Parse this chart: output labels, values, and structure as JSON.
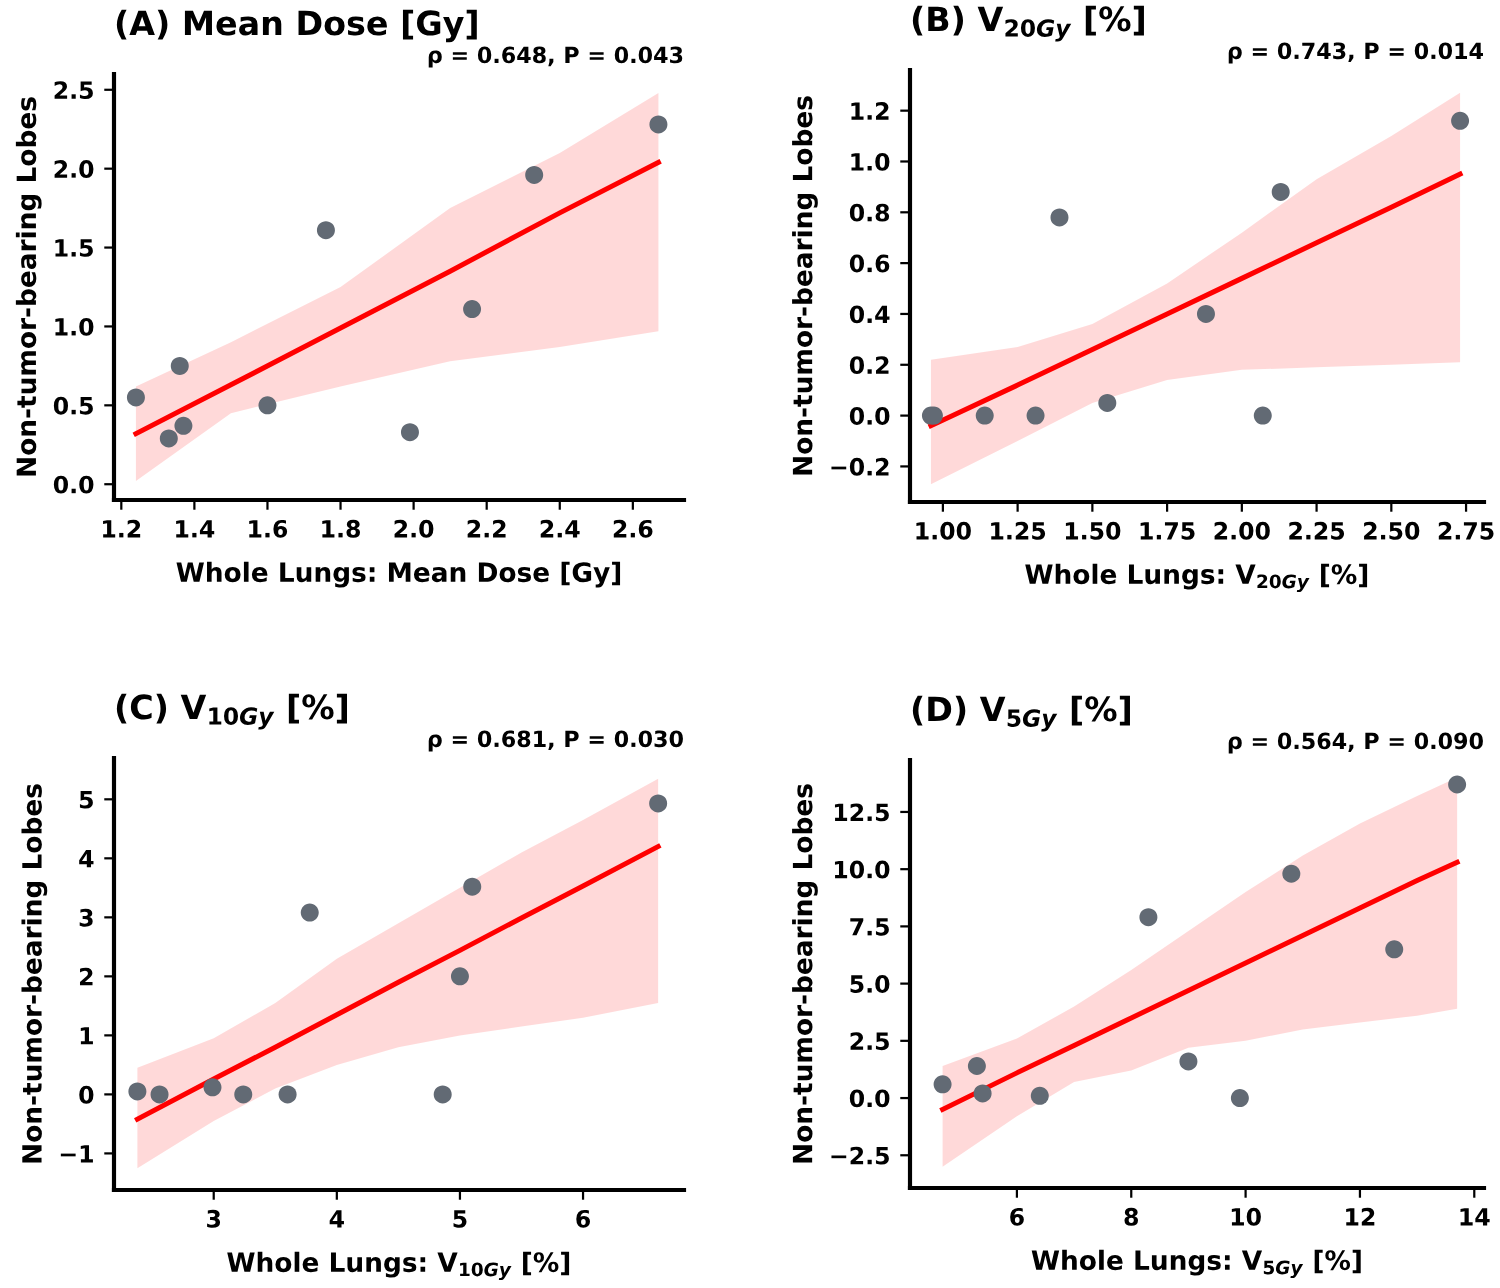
{
  "chart_data": [
    {
      "type": "scatter",
      "title": "(A) Mean Dose [Gy]",
      "xlabel": "Whole Lungs: Mean Dose [Gy]",
      "ylabel": "Non-tumor-bearing Lobes",
      "annotations": [
        "ρ = 0.648, P = 0.043"
      ],
      "xlim": [
        1.18,
        2.74
      ],
      "ylim": [
        -0.1,
        2.6
      ],
      "xticks": [
        1.2,
        1.4,
        1.6,
        1.8,
        {
          "value": 2,
          "label": "2.0"
        },
        2.2,
        2.4,
        2.6
      ],
      "yticks": [
        {
          "value": 0,
          "label": "0.0"
        },
        0.5,
        {
          "value": 1,
          "label": "1.0"
        },
        1.5,
        {
          "value": 2,
          "label": "2.0"
        },
        2.5
      ],
      "grid": false,
      "legend": false,
      "series": [
        {
          "marker": "circle",
          "color": "#626a74",
          "x": [
            1.24,
            1.33,
            1.36,
            1.37,
            1.6,
            1.76,
            1.99,
            2.16,
            2.33,
            2.67
          ],
          "values": [
            0.55,
            0.29,
            0.75,
            0.37,
            0.5,
            1.61,
            0.33,
            1.11,
            1.96,
            2.28
          ]
        },
        {
          "type": "line",
          "color": "#ff0000",
          "x": [
            1.24,
            1.5,
            1.8,
            2.1,
            2.4,
            2.67
          ],
          "values": [
            0.32,
            0.63,
            0.99,
            1.35,
            1.72,
            2.04
          ],
          "lower": [
            0.02,
            0.45,
            0.62,
            0.78,
            0.87,
            0.97
          ],
          "upper": [
            0.62,
            0.9,
            1.25,
            1.75,
            2.1,
            2.48
          ]
        }
      ]
    },
    {
      "type": "scatter",
      "title": "(B) V$_{20Gy}$ [%]",
      "xlabel": "Whole Lungs: V$_{20Gy}$ [%]",
      "ylabel": "Non-tumor-bearing Lobes",
      "annotations": [
        "ρ = 0.743, P = 0.014"
      ],
      "xlim": [
        0.89,
        2.81
      ],
      "ylim": [
        -0.34,
        1.36
      ],
      "xticks": [
        {
          "value": 1.0,
          "label": "1.00"
        },
        1.25,
        {
          "value": 1.5,
          "label": "1.50"
        },
        1.75,
        {
          "value": 2.0,
          "label": "2.00"
        },
        2.25,
        {
          "value": 2.5,
          "label": "2.50"
        },
        2.75
      ],
      "yticks": [
        {
          "value": -0.2,
          "label": "−0.2"
        },
        {
          "value": 0,
          "label": "0.0"
        },
        0.2,
        0.4,
        0.6,
        0.8,
        {
          "value": 1,
          "label": "1.0"
        },
        1.2
      ],
      "grid": false,
      "legend": false,
      "series": [
        {
          "marker": "circle",
          "color": "#626a74",
          "x": [
            0.96,
            0.97,
            1.14,
            1.31,
            1.39,
            1.55,
            1.88,
            2.07,
            2.13,
            2.73
          ],
          "values": [
            0.0,
            0.0,
            0.0,
            0.0,
            0.78,
            0.05,
            0.4,
            0.0,
            0.88,
            1.16
          ]
        },
        {
          "type": "line",
          "color": "#ff0000",
          "x": [
            0.96,
            1.25,
            1.5,
            1.75,
            2.0,
            2.25,
            2.5,
            2.73
          ],
          "values": [
            -0.04,
            0.12,
            0.26,
            0.4,
            0.54,
            0.68,
            0.82,
            0.95
          ],
          "lower": [
            -0.27,
            -0.1,
            0.05,
            0.14,
            0.18,
            0.19,
            0.2,
            0.21
          ],
          "upper": [
            0.22,
            0.27,
            0.36,
            0.52,
            0.72,
            0.93,
            1.1,
            1.27
          ]
        }
      ]
    },
    {
      "type": "scatter",
      "title": "(C) V$_{10Gy}$ [%]",
      "xlabel": "Whole Lungs: V$_{10Gy}$ [%]",
      "ylabel": "Non-tumor-bearing Lobes",
      "annotations": [
        "ρ = 0.681, P = 0.030"
      ],
      "xlim": [
        2.19,
        6.82
      ],
      "ylim": [
        -1.62,
        5.7
      ],
      "xticks": [
        3,
        4,
        5,
        6
      ],
      "yticks": [
        {
          "value": -1,
          "label": "−1"
        },
        0,
        1,
        2,
        3,
        4,
        5
      ],
      "grid": false,
      "legend": false,
      "series": [
        {
          "marker": "circle",
          "color": "#626a74",
          "x": [
            2.38,
            2.56,
            2.99,
            3.24,
            3.6,
            3.78,
            4.86,
            5.0,
            5.1,
            6.61
          ],
          "values": [
            0.05,
            0.0,
            0.12,
            0.0,
            0.0,
            3.08,
            0.0,
            2.0,
            3.52,
            4.93
          ]
        },
        {
          "type": "line",
          "color": "#ff0000",
          "x": [
            2.38,
            3.0,
            3.5,
            4.0,
            4.5,
            5.0,
            5.5,
            6.0,
            6.61
          ],
          "values": [
            -0.42,
            0.26,
            0.8,
            1.35,
            1.9,
            2.44,
            2.99,
            3.53,
            4.2
          ],
          "lower": [
            -1.25,
            -0.45,
            0.1,
            0.5,
            0.8,
            1.0,
            1.15,
            1.3,
            1.55
          ],
          "upper": [
            0.45,
            0.95,
            1.55,
            2.3,
            2.9,
            3.5,
            4.1,
            4.65,
            5.35
          ]
        }
      ]
    },
    {
      "type": "scatter",
      "title": "(D) V$_{5Gy}$ [%]",
      "xlabel": "Whole Lungs: V$_{5Gy}$ [%]",
      "ylabel": "Non-tumor-bearing Lobes",
      "annotations": [
        "ρ = 0.564, P = 0.090"
      ],
      "xlim": [
        4.13,
        14.17
      ],
      "ylim": [
        -3.93,
        14.77
      ],
      "xticks": [
        6,
        8,
        10,
        12,
        14
      ],
      "yticks": [
        {
          "value": -2.5,
          "label": "−2.5"
        },
        {
          "value": 0,
          "label": "0.0"
        },
        2.5,
        {
          "value": 5,
          "label": "5.0"
        },
        7.5,
        {
          "value": 10,
          "label": "10.0"
        },
        12.5
      ],
      "grid": false,
      "legend": false,
      "series": [
        {
          "marker": "circle",
          "color": "#626a74",
          "x": [
            4.7,
            5.3,
            5.4,
            6.4,
            8.3,
            9.0,
            9.9,
            10.8,
            12.6,
            13.7
          ],
          "values": [
            0.6,
            1.4,
            0.2,
            0.1,
            7.9,
            1.6,
            0.0,
            9.8,
            6.5,
            13.7
          ]
        },
        {
          "type": "line",
          "color": "#ff0000",
          "x": [
            4.7,
            6.0,
            7.0,
            8.0,
            9.0,
            10.0,
            11.0,
            12.0,
            13.0,
            13.7
          ],
          "values": [
            -0.5,
            1.1,
            2.3,
            3.5,
            4.7,
            5.9,
            7.1,
            8.3,
            9.5,
            10.3
          ],
          "lower": [
            -3.0,
            -0.8,
            0.7,
            1.2,
            2.2,
            2.5,
            3.0,
            3.3,
            3.6,
            3.9
          ],
          "upper": [
            1.4,
            2.6,
            4.0,
            5.6,
            7.3,
            9.0,
            10.6,
            12.0,
            13.2,
            14.0
          ]
        }
      ]
    }
  ]
}
